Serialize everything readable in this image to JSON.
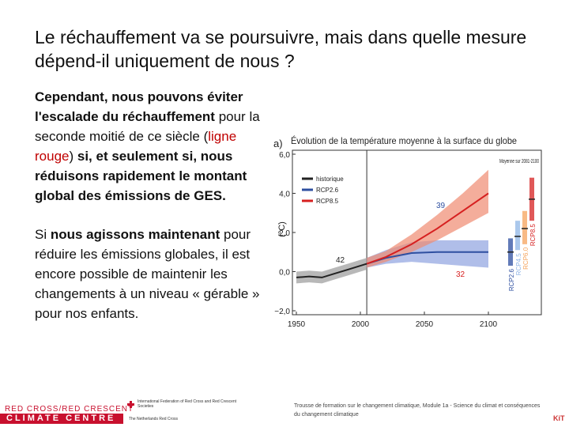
{
  "slide": {
    "title": "Le réchauffement va se poursuivre, mais dans quelle mesure dépend-il uniquement de nous ?",
    "paragraphs": [
      {
        "runs": [
          {
            "text": "Cependant, nous pouvons éviter l'escalade du réchauffement",
            "bold": true
          },
          {
            "text": " pour la seconde moitié de ce siècle (",
            "bold": false
          },
          {
            "text": "ligne rouge",
            "bold": false,
            "color": "#c00000"
          },
          {
            "text": ") ",
            "bold": false
          },
          {
            "text": "si, et seulement si, nous réduisons rapidement le montant global des émissions de GES.",
            "bold": true
          }
        ]
      },
      {
        "runs": [
          {
            "text": "Si ",
            "bold": false
          },
          {
            "text": "nous agissons maintenant",
            "bold": true
          },
          {
            "text": " pour réduire les émissions globales, il est encore possible de maintenir les changements à un niveau « gérable » pour nos enfants.",
            "bold": false
          }
        ]
      }
    ],
    "footer": {
      "logo_top": "RED CROSS/RED CRESCENT",
      "logo_bottom": "CLIMATE CENTRE",
      "ifrc": "International Federation of Red Cross and Red Crescent Societies",
      "nlrc": "The Netherlands Red Cross",
      "note": "Trousse de formation sur le changement climatique, Module 1a - Science du climat et conséquences du changement climatique",
      "kit": "KiT"
    }
  },
  "chart_data": {
    "type": "line",
    "panel": "a)",
    "title": "Évolution de la température moyenne à la surface du globe",
    "y_label": "(°C)",
    "xlim": [
      1950,
      2100
    ],
    "ylim": [
      -2,
      6
    ],
    "xticks": [
      1950,
      2000,
      2050,
      2100
    ],
    "yticks": [
      {
        "value": -2,
        "label": "−2,0"
      },
      {
        "value": 0,
        "label": "0,0"
      },
      {
        "value": 2,
        "label": "2,0"
      },
      {
        "value": 4,
        "label": "4,0"
      },
      {
        "value": 6,
        "label": "6,0"
      }
    ],
    "divider_x": 2005,
    "series": [
      {
        "name": "historique",
        "color": "#222222",
        "band_color": "#9a9a9a",
        "x": [
          1950,
          1960,
          1970,
          1980,
          1990,
          2000,
          2005
        ],
        "values": [
          -0.3,
          -0.25,
          -0.3,
          -0.1,
          0.1,
          0.3,
          0.4
        ],
        "lower": [
          -0.6,
          -0.55,
          -0.6,
          -0.4,
          -0.2,
          0.0,
          0.1
        ],
        "upper": [
          0.0,
          0.05,
          0.0,
          0.2,
          0.4,
          0.6,
          0.7
        ]
      },
      {
        "name": "RCP2.6",
        "color": "#2e4fa0",
        "band_color": "#8ea3e0",
        "x": [
          2005,
          2020,
          2040,
          2060,
          2080,
          2100
        ],
        "values": [
          0.4,
          0.7,
          0.95,
          1.0,
          1.0,
          1.0
        ],
        "lower": [
          0.2,
          0.4,
          0.5,
          0.4,
          0.3,
          0.2
        ],
        "upper": [
          0.7,
          1.1,
          1.5,
          1.6,
          1.6,
          1.6
        ]
      },
      {
        "name": "RCP8.5",
        "color": "#d62020",
        "band_color": "#f08a70",
        "x": [
          2005,
          2020,
          2040,
          2060,
          2080,
          2100
        ],
        "values": [
          0.4,
          0.75,
          1.4,
          2.2,
          3.1,
          4.0
        ],
        "lower": [
          0.2,
          0.5,
          1.0,
          1.6,
          2.3,
          3.0
        ],
        "upper": [
          0.7,
          1.05,
          1.9,
          2.9,
          4.0,
          5.2
        ]
      }
    ],
    "annotations": [
      "42",
      "39",
      "32"
    ],
    "bars_title": "Moyenne sur 2081-2100",
    "bars": [
      {
        "name": "RCP2.6",
        "color": "#2e4fa0",
        "mean": 1.0,
        "low": 0.3,
        "high": 1.7
      },
      {
        "name": "RCP4.5",
        "color": "#8fb5e6",
        "mean": 1.8,
        "low": 1.1,
        "high": 2.6
      },
      {
        "name": "RCP6.0",
        "color": "#f5a35c",
        "mean": 2.2,
        "low": 1.4,
        "high": 3.1
      },
      {
        "name": "RCP8.5",
        "color": "#d62020",
        "mean": 3.7,
        "low": 2.6,
        "high": 4.8
      }
    ]
  }
}
